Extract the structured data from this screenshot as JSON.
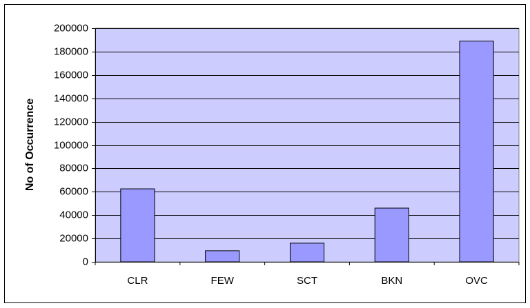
{
  "chart_data": {
    "type": "bar",
    "y_label": "No of Occurrence",
    "categories": [
      "CLR",
      "FEW",
      "SCT",
      "BKN",
      "OVC"
    ],
    "values": [
      62500,
      9500,
      16000,
      46000,
      189000
    ],
    "color": "#9999ff",
    "ylim": [
      0,
      200000
    ],
    "yticks": [
      0,
      20000,
      40000,
      60000,
      80000,
      100000,
      120000,
      140000,
      160000,
      180000,
      200000
    ],
    "grid": true
  }
}
